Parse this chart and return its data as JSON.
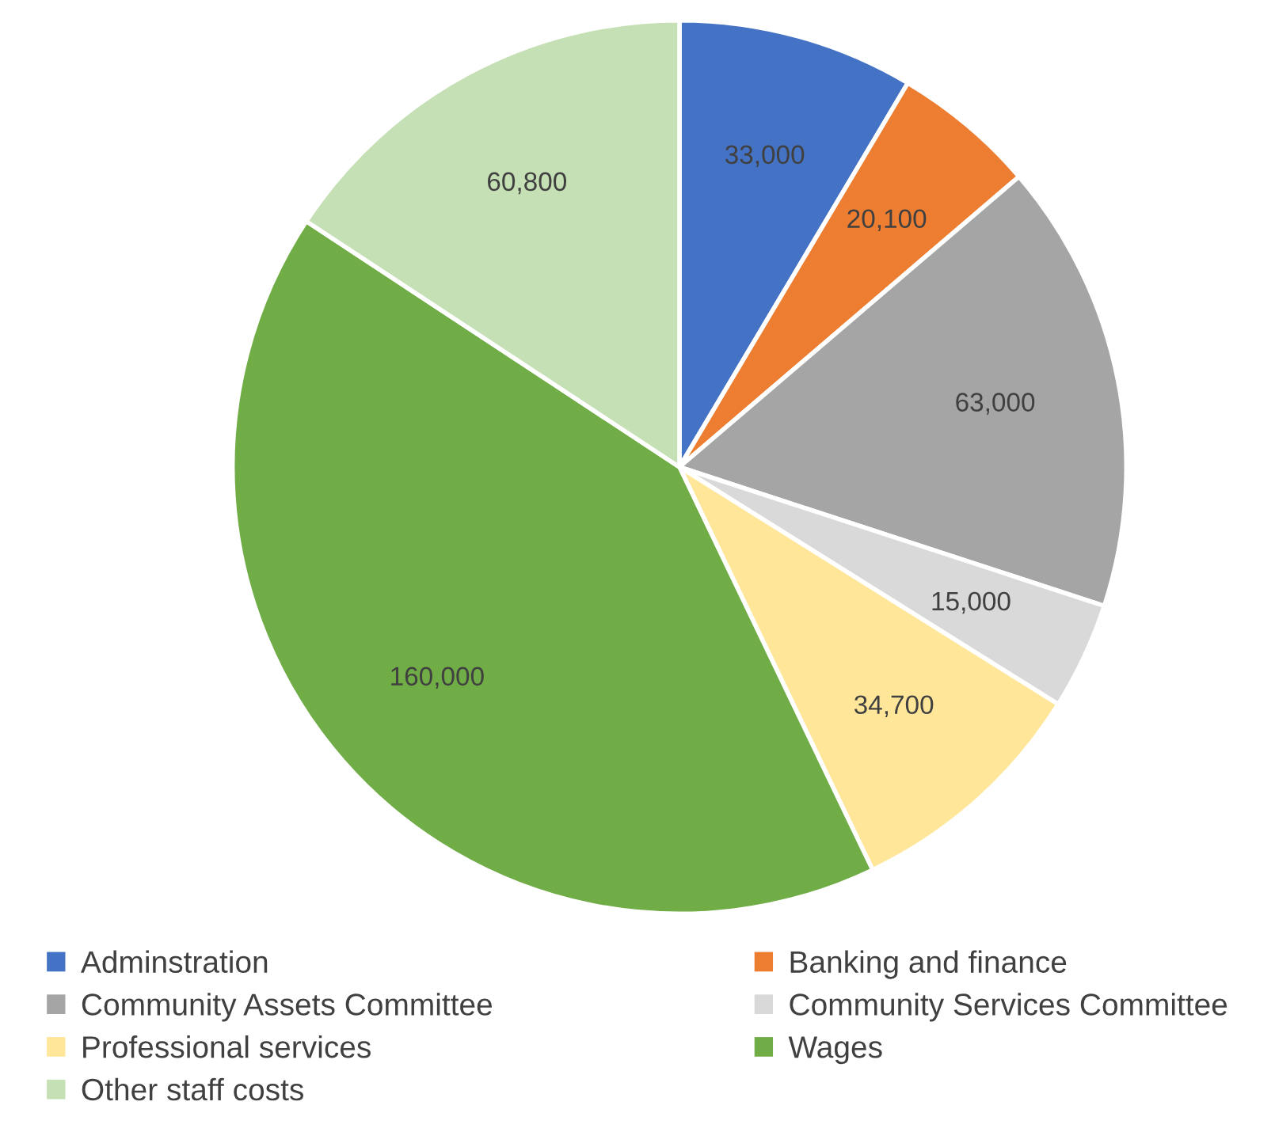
{
  "chart_data": {
    "type": "pie",
    "categories": [
      "Adminstration",
      "Banking and finance",
      "Community Assets Committee",
      "Community Services Committee",
      "Professional services",
      "Wages",
      "Other staff costs"
    ],
    "values": [
      33000,
      20100,
      63000,
      15000,
      34700,
      160000,
      60800
    ],
    "colors": [
      "#4472c4",
      "#ed7d31",
      "#a5a5a5",
      "#d9d9d9",
      "#ffe699",
      "#70ad47",
      "#c5e0b4"
    ],
    "value_labels": [
      "33,000",
      "20,100",
      "63,000",
      "15,000",
      "34,700",
      "160,000",
      "60,800"
    ],
    "legend": "bottom"
  }
}
